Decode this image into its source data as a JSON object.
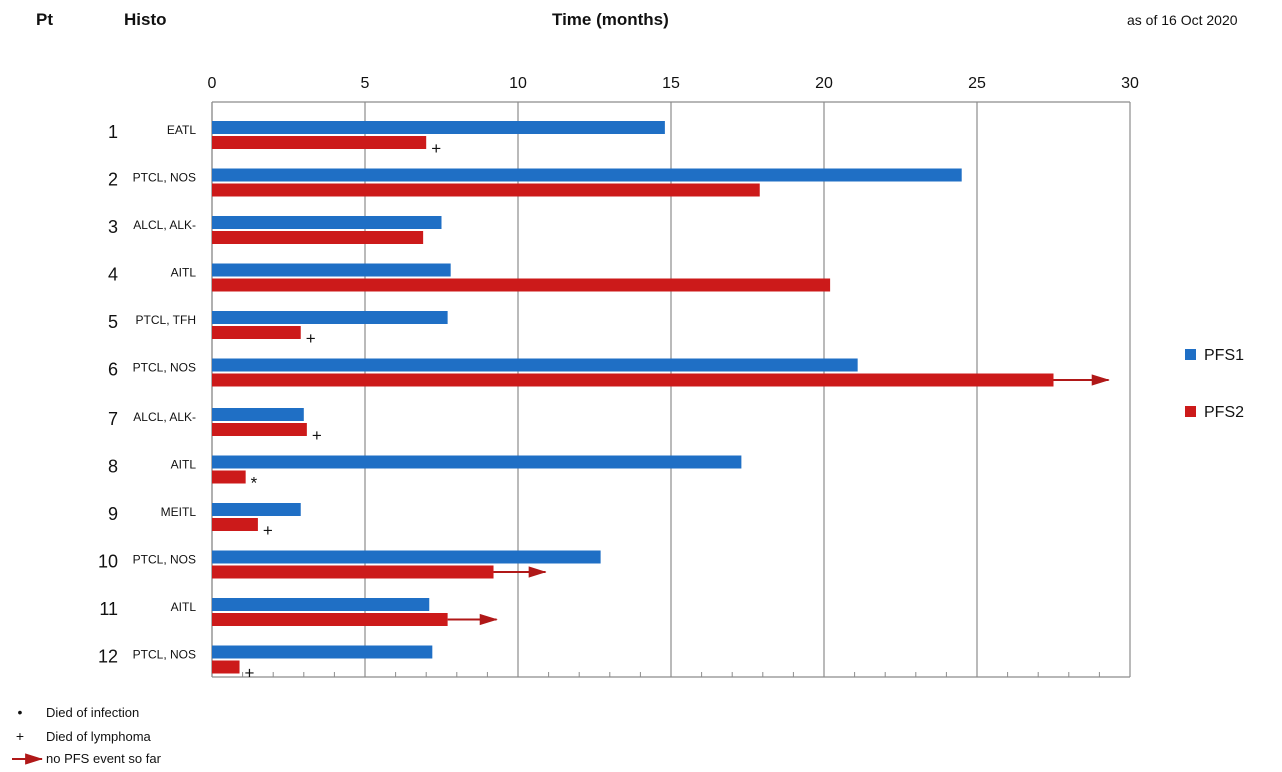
{
  "header": {
    "pt_label": "Pt",
    "histo_label": "Histo",
    "as_of": "as of 16 Oct 2020"
  },
  "chart_data": {
    "type": "bar",
    "orientation": "horizontal",
    "title": "",
    "xlabel": "Time (months)",
    "xlim": [
      0,
      30
    ],
    "xticks": [
      0,
      5,
      10,
      15,
      20,
      25,
      30
    ],
    "grid": true,
    "legend_position": "right",
    "colors": {
      "PFS1": "#1f6fc5",
      "PFS2": "#cc1a1a",
      "arrow": "#b01818"
    },
    "rows": [
      {
        "pt": "1",
        "histo": "EATL",
        "pfs1": 14.8,
        "pfs2": 7.0,
        "marker": "+",
        "ongoing_to": null
      },
      {
        "pt": "2",
        "histo": "PTCL, NOS",
        "pfs1": 24.5,
        "pfs2": 17.9,
        "marker": "",
        "ongoing_to": null
      },
      {
        "pt": "3",
        "histo": "ALCL, ALK-",
        "pfs1": 7.5,
        "pfs2": 6.9,
        "marker": "",
        "ongoing_to": null
      },
      {
        "pt": "4",
        "histo": "AITL",
        "pfs1": 7.8,
        "pfs2": 20.2,
        "marker": "",
        "ongoing_to": null
      },
      {
        "pt": "5",
        "histo": "PTCL, TFH",
        "pfs1": 7.7,
        "pfs2": 2.9,
        "marker": "+",
        "ongoing_to": null
      },
      {
        "pt": "6",
        "histo": "PTCL, NOS",
        "pfs1": 21.1,
        "pfs2": 27.5,
        "marker": "",
        "ongoing_to": 29.3
      },
      {
        "pt": "7",
        "histo": "ALCL, ALK-",
        "pfs1": 3.0,
        "pfs2": 3.1,
        "marker": "+",
        "ongoing_to": null
      },
      {
        "pt": "8",
        "histo": "AITL",
        "pfs1": 17.3,
        "pfs2": 1.1,
        "marker": "*",
        "ongoing_to": null
      },
      {
        "pt": "9",
        "histo": "MEITL",
        "pfs1": 2.9,
        "pfs2": 1.5,
        "marker": "+",
        "ongoing_to": null
      },
      {
        "pt": "10",
        "histo": "PTCL, NOS",
        "pfs1": 12.7,
        "pfs2": 9.2,
        "marker": "",
        "ongoing_to": 10.9
      },
      {
        "pt": "11",
        "histo": "AITL",
        "pfs1": 7.1,
        "pfs2": 7.7,
        "marker": "",
        "ongoing_to": 9.3
      },
      {
        "pt": "12",
        "histo": "PTCL, NOS",
        "pfs1": 7.2,
        "pfs2": 0.9,
        "marker": "+",
        "ongoing_to": null
      }
    ],
    "series": [
      {
        "name": "PFS1",
        "key": "pfs1"
      },
      {
        "name": "PFS2",
        "key": "pfs2"
      }
    ]
  },
  "footnotes": [
    {
      "symbol": "•",
      "text": "Died of infection"
    },
    {
      "symbol": "+",
      "text": "Died of lymphoma"
    },
    {
      "symbol": "arrow",
      "text": "no PFS event so far"
    }
  ]
}
